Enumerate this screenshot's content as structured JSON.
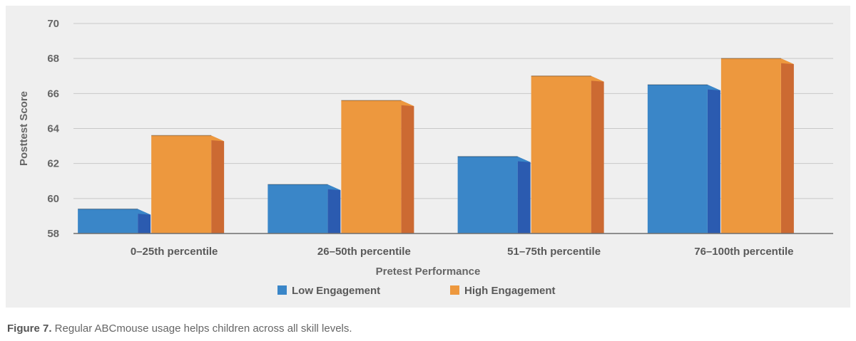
{
  "chart_data": {
    "type": "bar",
    "xlabel": "Pretest Performance",
    "ylabel": "Posttest Score",
    "ylim": [
      58,
      70
    ],
    "yticks": [
      "58",
      "60",
      "62",
      "64",
      "66",
      "68",
      "70"
    ],
    "categories": [
      "0–25th percentile",
      "26–50th percentile",
      "51–75th percentile",
      "76–100th percentile"
    ],
    "series": [
      {
        "name": "Low Engagement",
        "values": [
          59.4,
          60.8,
          62.4,
          66.5
        ],
        "color": "#3a86c8",
        "side_color": "#2b5bb0"
      },
      {
        "name": "High Engagement",
        "values": [
          63.6,
          65.6,
          67.0,
          68.0
        ],
        "color": "#ed983e",
        "side_color": "#cc6a32"
      }
    ],
    "grid": true,
    "legend": "bottom",
    "style": "3d-bar"
  },
  "caption": {
    "label": "Figure 7.",
    "text": " Regular ABCmouse usage helps children across all skill levels."
  }
}
